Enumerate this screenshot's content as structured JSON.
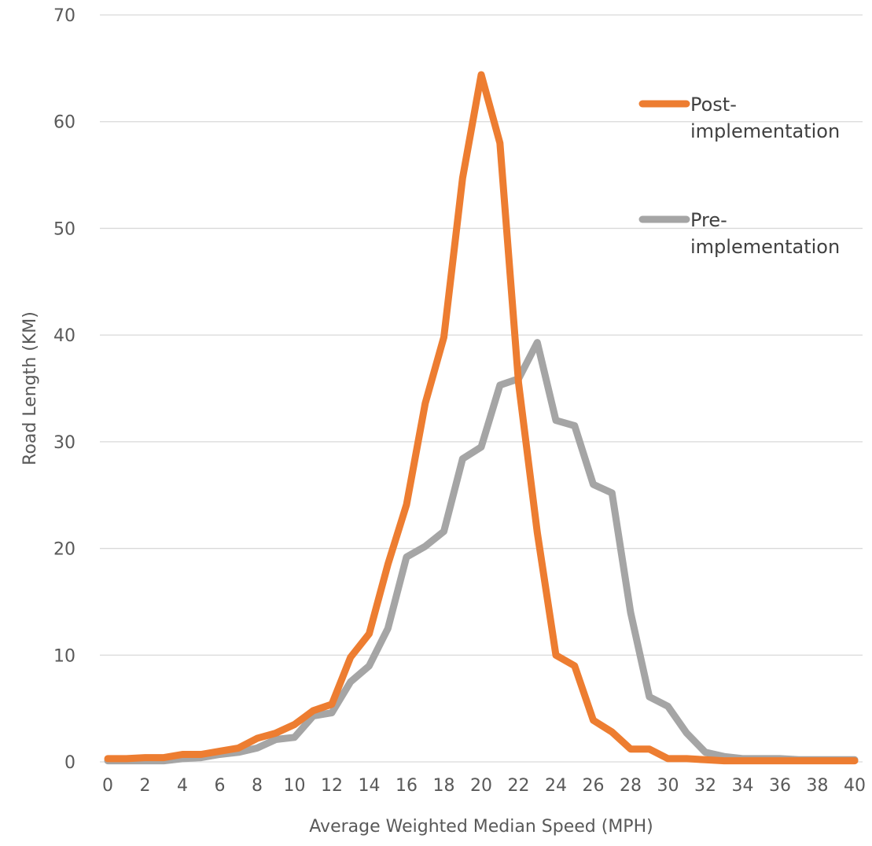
{
  "chart_data": {
    "type": "line",
    "title": "",
    "xlabel": "Average Weighted Median Speed (MPH)",
    "ylabel": "Road Length (KM)",
    "ylim": [
      0,
      70
    ],
    "xlim": [
      0,
      40
    ],
    "yticks": [
      "0",
      "10",
      "20",
      "30",
      "40",
      "50",
      "60",
      "70"
    ],
    "xticks": [
      "0",
      "2",
      "4",
      "6",
      "8",
      "10",
      "12",
      "14",
      "16",
      "18",
      "20",
      "22",
      "24",
      "26",
      "28",
      "30",
      "32",
      "34",
      "36",
      "38",
      "40"
    ],
    "grid": true,
    "legend_position": "right",
    "x": [
      0,
      1,
      2,
      3,
      4,
      5,
      6,
      7,
      8,
      9,
      10,
      11,
      12,
      13,
      14,
      15,
      16,
      17,
      18,
      19,
      20,
      21,
      22,
      23,
      24,
      25,
      26,
      27,
      28,
      29,
      30,
      31,
      32,
      33,
      34,
      35,
      36,
      37,
      38,
      39,
      40
    ],
    "series": [
      {
        "name": "Post-implementation",
        "legend_lines": [
          "Post-",
          "implementation"
        ],
        "color": "#ed7d31",
        "values": [
          0.3,
          0.3,
          0.4,
          0.4,
          0.7,
          0.7,
          1.0,
          1.3,
          2.2,
          2.7,
          3.5,
          4.8,
          5.4,
          9.8,
          12.0,
          18.5,
          24.1,
          33.6,
          39.8,
          54.7,
          64.4,
          58.0,
          35.5,
          21.5,
          10.0,
          9.0,
          3.9,
          2.8,
          1.2,
          1.2,
          0.3,
          0.3,
          0.2,
          0.1,
          0.1,
          0.1,
          0.1,
          0.1,
          0.1,
          0.1,
          0.1
        ]
      },
      {
        "name": "Pre-implementation",
        "legend_lines": [
          "Pre-",
          "implementation"
        ],
        "color": "#a5a5a5",
        "values": [
          0.1,
          0.1,
          0.1,
          0.1,
          0.3,
          0.4,
          0.7,
          0.9,
          1.3,
          2.1,
          2.3,
          4.3,
          4.6,
          7.5,
          9.0,
          12.5,
          19.2,
          20.2,
          21.6,
          28.4,
          29.5,
          35.3,
          35.9,
          39.3,
          32.0,
          31.5,
          26.0,
          25.2,
          14.0,
          6.1,
          5.2,
          2.7,
          0.9,
          0.5,
          0.3,
          0.3,
          0.3,
          0.2,
          0.2,
          0.2,
          0.2
        ]
      }
    ]
  }
}
